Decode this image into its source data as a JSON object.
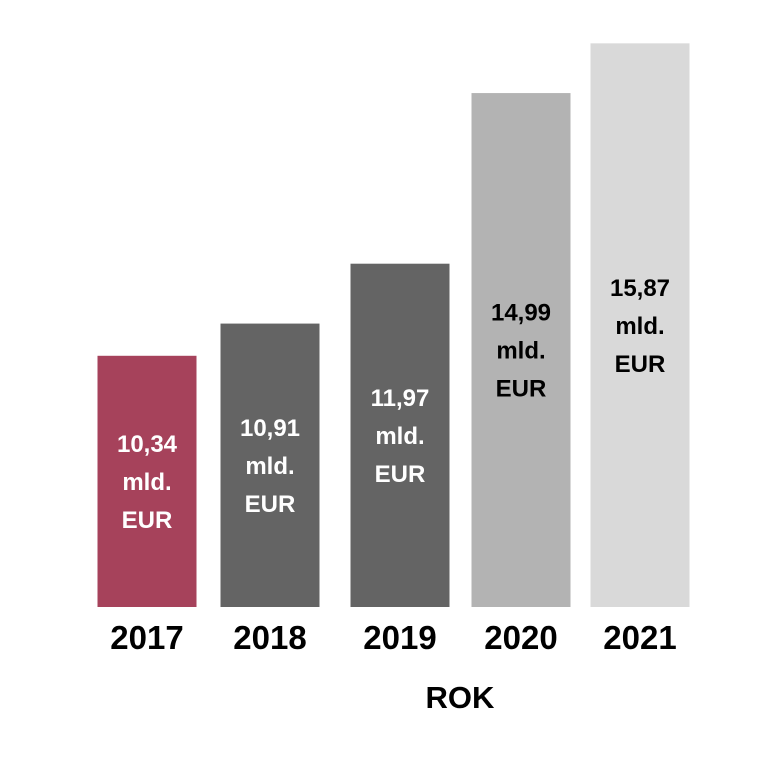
{
  "chart_data": {
    "type": "bar",
    "title": "",
    "xlabel": "ROK",
    "ylabel": "",
    "unit": "mld. EUR",
    "categories": [
      "2017",
      "2018",
      "2019",
      "2020",
      "2021"
    ],
    "values": [
      10.34,
      10.91,
      11.97,
      14.99,
      15.87
    ],
    "data_labels": [
      [
        "10,34",
        "mld.",
        "EUR"
      ],
      [
        "10,91",
        "mld.",
        "EUR"
      ],
      [
        "11,97",
        "mld.",
        "EUR"
      ],
      [
        "14,99",
        "mld.",
        "EUR"
      ],
      [
        "15,87",
        "mld.",
        "EUR"
      ]
    ],
    "colors": [
      "#a6425b",
      "#646464",
      "#646464",
      "#b3b3b3",
      "#d9d9d9"
    ],
    "label_colors": [
      "#ffffff",
      "#ffffff",
      "#ffffff",
      "#000000",
      "#000000"
    ],
    "grid": false,
    "legend": "none"
  }
}
